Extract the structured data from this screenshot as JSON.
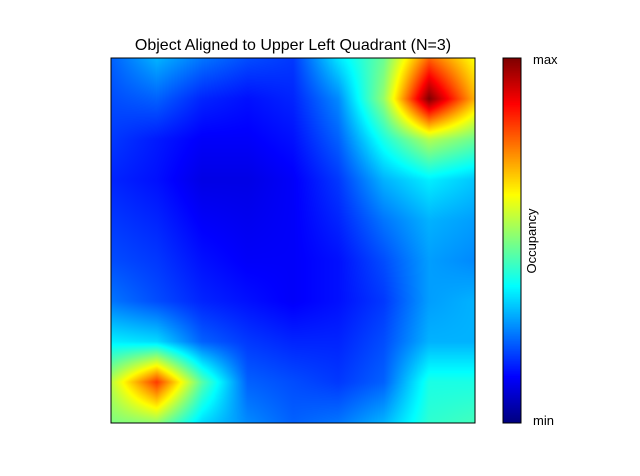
{
  "chart_data": {
    "type": "heatmap",
    "title": "Object Aligned to Upper Left Quadrant (N=3)",
    "colormap": "jet",
    "axes_ticks_visible": false,
    "grid": false,
    "colorbar": {
      "label": "Occupancy",
      "max_label": "max",
      "min_label": "min",
      "placement": "right"
    },
    "value_range": [
      0,
      1
    ],
    "rows_top_to_bottom": [
      [
        0.22,
        0.3,
        0.24,
        0.2,
        0.18,
        0.35,
        0.48,
        0.78,
        0.62
      ],
      [
        0.2,
        0.22,
        0.16,
        0.14,
        0.16,
        0.26,
        0.52,
        1.0,
        0.7
      ],
      [
        0.18,
        0.15,
        0.12,
        0.12,
        0.14,
        0.22,
        0.4,
        0.55,
        0.48
      ],
      [
        0.16,
        0.14,
        0.1,
        0.1,
        0.12,
        0.18,
        0.3,
        0.36,
        0.32
      ],
      [
        0.18,
        0.16,
        0.12,
        0.11,
        0.12,
        0.16,
        0.24,
        0.3,
        0.28
      ],
      [
        0.2,
        0.18,
        0.14,
        0.12,
        0.12,
        0.14,
        0.2,
        0.28,
        0.26
      ],
      [
        0.24,
        0.2,
        0.16,
        0.14,
        0.12,
        0.14,
        0.18,
        0.28,
        0.3
      ],
      [
        0.36,
        0.34,
        0.22,
        0.18,
        0.16,
        0.16,
        0.2,
        0.3,
        0.3
      ],
      [
        0.56,
        0.82,
        0.46,
        0.22,
        0.2,
        0.18,
        0.22,
        0.4,
        0.4
      ],
      [
        0.5,
        0.52,
        0.34,
        0.26,
        0.22,
        0.24,
        0.3,
        0.42,
        0.44
      ]
    ]
  }
}
